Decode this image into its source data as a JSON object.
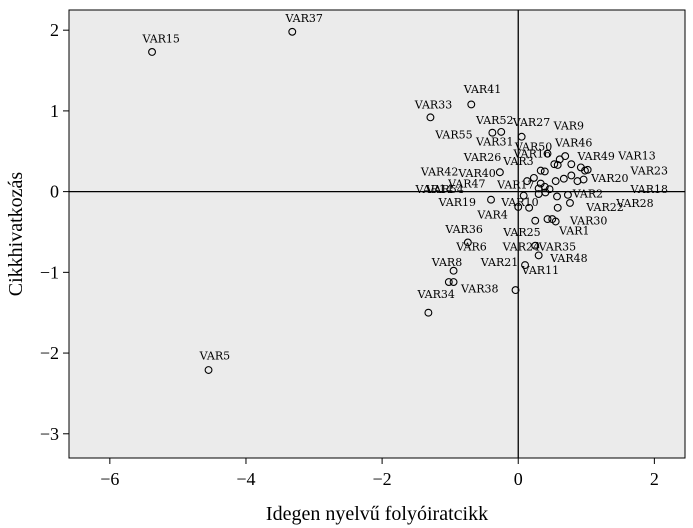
{
  "chart_data": {
    "type": "scatter",
    "xlabel": "Idegen  nyelvű folyóiratcikk",
    "ylabel": "Cikkhivatkozás",
    "xlim": [
      -6.6,
      2.45
    ],
    "ylim": [
      -3.3,
      2.25
    ],
    "xticks": [
      -6,
      -4,
      -2,
      0,
      2
    ],
    "yticks": [
      -3,
      -2,
      -1,
      0,
      1,
      2
    ],
    "xtick_labels": [
      "−6",
      "−4",
      "−2",
      "0",
      "2"
    ],
    "ytick_labels": [
      "−3",
      "−2",
      "−1",
      "0",
      "1",
      "2"
    ],
    "reference_lines": {
      "x": 0,
      "y": 0
    },
    "marker_color": "#000000",
    "plot_background": "#ebebeb",
    "points": [
      {
        "x": 0.05,
        "y": 0.68
      },
      {
        "x": 0.43,
        "y": 0.47
      },
      {
        "x": 0.61,
        "y": 0.4
      },
      {
        "x": 0.69,
        "y": 0.44
      },
      {
        "x": 0.78,
        "y": 0.34
      },
      {
        "x": 0.92,
        "y": 0.3
      },
      {
        "x": 0.98,
        "y": 0.26
      },
      {
        "x": 1.02,
        "y": 0.27
      },
      {
        "x": 0.53,
        "y": 0.34
      },
      {
        "x": 0.58,
        "y": 0.33
      },
      {
        "x": 0.33,
        "y": 0.26
      },
      {
        "x": 0.39,
        "y": 0.25
      },
      {
        "x": 0.23,
        "y": 0.17
      },
      {
        "x": 0.33,
        "y": 0.1
      },
      {
        "x": 0.39,
        "y": 0.06
      },
      {
        "x": 0.46,
        "y": 0.03
      },
      {
        "x": 0.55,
        "y": 0.13
      },
      {
        "x": 0.67,
        "y": 0.16
      },
      {
        "x": 0.78,
        "y": 0.2
      },
      {
        "x": 0.87,
        "y": 0.13
      },
      {
        "x": 0.96,
        "y": 0.15
      },
      {
        "x": 0.13,
        "y": 0.13
      },
      {
        "x": 0.3,
        "y": 0.04
      },
      {
        "x": 0.08,
        "y": -0.05
      },
      {
        "x": 0.3,
        "y": -0.03
      },
      {
        "x": 0.4,
        "y": -0.01
      },
      {
        "x": 0.57,
        "y": -0.06
      },
      {
        "x": 0.73,
        "y": -0.04
      },
      {
        "x": 0.76,
        "y": -0.14
      },
      {
        "x": 0.58,
        "y": -0.2
      },
      {
        "x": 0.0,
        "y": -0.19
      },
      {
        "x": 0.16,
        "y": -0.2
      },
      {
        "x": 0.25,
        "y": -0.36
      },
      {
        "x": 0.43,
        "y": -0.34
      },
      {
        "x": 0.5,
        "y": -0.34
      },
      {
        "x": 0.55,
        "y": -0.37
      },
      {
        "x": -0.27,
        "y": 0.24
      },
      {
        "x": -0.38,
        "y": 0.73
      },
      {
        "x": -0.25,
        "y": 0.74
      },
      {
        "x": -0.69,
        "y": 1.08
      },
      {
        "x": -1.29,
        "y": 0.92
      },
      {
        "x": -0.4,
        "y": -0.1
      },
      {
        "x": -0.74,
        "y": -0.63
      },
      {
        "x": -0.95,
        "y": -0.98
      },
      {
        "x": -1.02,
        "y": -1.12
      },
      {
        "x": -0.95,
        "y": -1.12
      },
      {
        "x": -1.32,
        "y": -1.5
      },
      {
        "x": 0.25,
        "y": -0.67
      },
      {
        "x": 0.3,
        "y": -0.79
      },
      {
        "x": 0.1,
        "y": -0.91
      },
      {
        "x": -0.04,
        "y": -1.22
      },
      {
        "x": -5.38,
        "y": 1.73
      },
      {
        "x": -3.32,
        "y": 1.98
      },
      {
        "x": -4.55,
        "y": -2.21
      }
    ],
    "labels": [
      {
        "text": "VAR37",
        "x": -3.42,
        "y": 2.1
      },
      {
        "text": "VAR15",
        "x": -5.52,
        "y": 1.85
      },
      {
        "text": "VAR41",
        "x": -0.8,
        "y": 1.22
      },
      {
        "text": "VAR33",
        "x": -1.52,
        "y": 1.03
      },
      {
        "text": "VAR52",
        "x": -0.62,
        "y": 0.84
      },
      {
        "text": "VAR27",
        "x": -0.08,
        "y": 0.81
      },
      {
        "text": "VAR9",
        "x": 0.52,
        "y": 0.77
      },
      {
        "text": "VAR55",
        "x": -1.22,
        "y": 0.66
      },
      {
        "text": "VAR31",
        "x": -0.62,
        "y": 0.57
      },
      {
        "text": "VAR50",
        "x": -0.05,
        "y": 0.51
      },
      {
        "text": "VAR46",
        "x": 0.54,
        "y": 0.56
      },
      {
        "text": "VAR16",
        "x": -0.07,
        "y": 0.42
      },
      {
        "text": "VAR26",
        "x": -0.8,
        "y": 0.38
      },
      {
        "text": "VAR3",
        "x": -0.22,
        "y": 0.33
      },
      {
        "text": "VAR49",
        "x": 0.87,
        "y": 0.39
      },
      {
        "text": "VAR13",
        "x": 1.47,
        "y": 0.4
      },
      {
        "text": "VAR42",
        "x": -1.43,
        "y": 0.2
      },
      {
        "text": "VAR40",
        "x": -0.88,
        "y": 0.18
      },
      {
        "text": "VAR23",
        "x": 1.65,
        "y": 0.21
      },
      {
        "text": "VAR20",
        "x": 1.07,
        "y": 0.12
      },
      {
        "text": "VAR47",
        "x": -1.03,
        "y": 0.05
      },
      {
        "text": "VAR17",
        "x": -0.31,
        "y": 0.04
      },
      {
        "text": "VAR54",
        "x": -1.35,
        "y": -0.02
      },
      {
        "text": "VAR14",
        "x": -1.51,
        "y": -0.02
      },
      {
        "text": "VAR18",
        "x": 1.65,
        "y": -0.02
      },
      {
        "text": "VAR2",
        "x": 0.8,
        "y": -0.07
      },
      {
        "text": "VAR19",
        "x": -1.17,
        "y": -0.18
      },
      {
        "text": "VAR10",
        "x": -0.25,
        "y": -0.18
      },
      {
        "text": "VAR28",
        "x": 1.44,
        "y": -0.19
      },
      {
        "text": "VAR22",
        "x": 1.0,
        "y": -0.24
      },
      {
        "text": "VAR4",
        "x": -0.6,
        "y": -0.33
      },
      {
        "text": "VAR30",
        "x": 0.76,
        "y": -0.41
      },
      {
        "text": "VAR36",
        "x": -1.07,
        "y": -0.51
      },
      {
        "text": "VAR25",
        "x": -0.22,
        "y": -0.55
      },
      {
        "text": "VAR1",
        "x": 0.6,
        "y": -0.53
      },
      {
        "text": "VAR6",
        "x": -0.91,
        "y": -0.73
      },
      {
        "text": "VAR24",
        "x": -0.23,
        "y": -0.73
      },
      {
        "text": "VAR35",
        "x": 0.3,
        "y": -0.73
      },
      {
        "text": "VAR8",
        "x": -1.27,
        "y": -0.92
      },
      {
        "text": "VAR21",
        "x": -0.55,
        "y": -0.92
      },
      {
        "text": "VAR48",
        "x": 0.47,
        "y": -0.87
      },
      {
        "text": "VAR11",
        "x": 0.05,
        "y": -1.02
      },
      {
        "text": "VAR38",
        "x": -0.84,
        "y": -1.25
      },
      {
        "text": "VAR34",
        "x": -1.48,
        "y": -1.32
      },
      {
        "text": "VAR5",
        "x": -4.68,
        "y": -2.08
      }
    ]
  }
}
